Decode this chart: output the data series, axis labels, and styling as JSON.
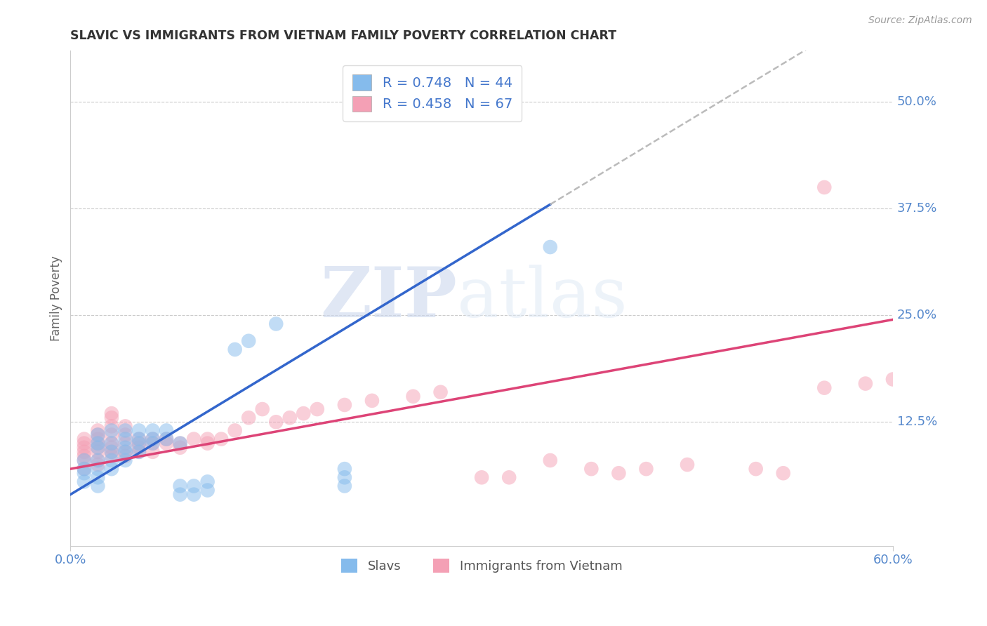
{
  "title": "SLAVIC VS IMMIGRANTS FROM VIETNAM FAMILY POVERTY CORRELATION CHART",
  "source_text": "Source: ZipAtlas.com",
  "xmin": 0.0,
  "xmax": 0.6,
  "ymin": -0.02,
  "ymax": 0.56,
  "slavs_R": 0.748,
  "slavs_N": 44,
  "vietnam_R": 0.458,
  "vietnam_N": 67,
  "slavs_color": "#85bbec",
  "vietnam_color": "#f4a0b5",
  "slavs_line_color": "#3366cc",
  "vietnam_line_color": "#dd4477",
  "dashed_line_color": "#bbbbbb",
  "legend_label_slavs": "Slavs",
  "legend_label_vietnam": "Immigrants from Vietnam",
  "ylabel": "Family Poverty",
  "watermark_zip": "ZIP",
  "watermark_atlas": "atlas",
  "background_color": "#ffffff",
  "grid_color": "#cccccc",
  "tick_label_color": "#5588cc",
  "title_color": "#333333",
  "slavs_line_x0": 0.0,
  "slavs_line_y0": 0.04,
  "slavs_line_x1": 0.35,
  "slavs_line_y1": 0.38,
  "slavs_line_solid_end": 0.35,
  "vietnam_line_x0": 0.0,
  "vietnam_line_y0": 0.07,
  "vietnam_line_x1": 0.6,
  "vietnam_line_y1": 0.245,
  "slavs_scatter": [
    [
      0.01,
      0.055
    ],
    [
      0.01,
      0.065
    ],
    [
      0.01,
      0.07
    ],
    [
      0.01,
      0.08
    ],
    [
      0.02,
      0.06
    ],
    [
      0.02,
      0.07
    ],
    [
      0.02,
      0.08
    ],
    [
      0.02,
      0.095
    ],
    [
      0.02,
      0.1
    ],
    [
      0.02,
      0.11
    ],
    [
      0.02,
      0.05
    ],
    [
      0.03,
      0.07
    ],
    [
      0.03,
      0.08
    ],
    [
      0.03,
      0.09
    ],
    [
      0.03,
      0.1
    ],
    [
      0.03,
      0.115
    ],
    [
      0.04,
      0.08
    ],
    [
      0.04,
      0.09
    ],
    [
      0.04,
      0.095
    ],
    [
      0.04,
      0.105
    ],
    [
      0.04,
      0.115
    ],
    [
      0.05,
      0.09
    ],
    [
      0.05,
      0.1
    ],
    [
      0.05,
      0.105
    ],
    [
      0.05,
      0.115
    ],
    [
      0.06,
      0.1
    ],
    [
      0.06,
      0.105
    ],
    [
      0.06,
      0.115
    ],
    [
      0.07,
      0.105
    ],
    [
      0.07,
      0.115
    ],
    [
      0.08,
      0.1
    ],
    [
      0.08,
      0.04
    ],
    [
      0.08,
      0.05
    ],
    [
      0.09,
      0.04
    ],
    [
      0.09,
      0.05
    ],
    [
      0.1,
      0.045
    ],
    [
      0.1,
      0.055
    ],
    [
      0.12,
      0.21
    ],
    [
      0.13,
      0.22
    ],
    [
      0.15,
      0.24
    ],
    [
      0.2,
      0.07
    ],
    [
      0.2,
      0.06
    ],
    [
      0.35,
      0.33
    ],
    [
      0.2,
      0.05
    ]
  ],
  "vietnam_scatter": [
    [
      0.01,
      0.07
    ],
    [
      0.01,
      0.08
    ],
    [
      0.01,
      0.085
    ],
    [
      0.01,
      0.09
    ],
    [
      0.01,
      0.095
    ],
    [
      0.01,
      0.1
    ],
    [
      0.01,
      0.105
    ],
    [
      0.02,
      0.075
    ],
    [
      0.02,
      0.08
    ],
    [
      0.02,
      0.09
    ],
    [
      0.02,
      0.095
    ],
    [
      0.02,
      0.1
    ],
    [
      0.02,
      0.105
    ],
    [
      0.02,
      0.11
    ],
    [
      0.02,
      0.115
    ],
    [
      0.03,
      0.085
    ],
    [
      0.03,
      0.09
    ],
    [
      0.03,
      0.095
    ],
    [
      0.03,
      0.1
    ],
    [
      0.03,
      0.11
    ],
    [
      0.03,
      0.12
    ],
    [
      0.03,
      0.13
    ],
    [
      0.03,
      0.135
    ],
    [
      0.04,
      0.085
    ],
    [
      0.04,
      0.09
    ],
    [
      0.04,
      0.1
    ],
    [
      0.04,
      0.11
    ],
    [
      0.04,
      0.12
    ],
    [
      0.05,
      0.09
    ],
    [
      0.05,
      0.095
    ],
    [
      0.05,
      0.1
    ],
    [
      0.05,
      0.105
    ],
    [
      0.06,
      0.09
    ],
    [
      0.06,
      0.1
    ],
    [
      0.06,
      0.105
    ],
    [
      0.07,
      0.1
    ],
    [
      0.07,
      0.105
    ],
    [
      0.08,
      0.095
    ],
    [
      0.08,
      0.1
    ],
    [
      0.09,
      0.105
    ],
    [
      0.1,
      0.1
    ],
    [
      0.1,
      0.105
    ],
    [
      0.11,
      0.105
    ],
    [
      0.12,
      0.115
    ],
    [
      0.13,
      0.13
    ],
    [
      0.14,
      0.14
    ],
    [
      0.15,
      0.125
    ],
    [
      0.16,
      0.13
    ],
    [
      0.17,
      0.135
    ],
    [
      0.18,
      0.14
    ],
    [
      0.2,
      0.145
    ],
    [
      0.22,
      0.15
    ],
    [
      0.25,
      0.155
    ],
    [
      0.27,
      0.16
    ],
    [
      0.3,
      0.06
    ],
    [
      0.32,
      0.06
    ],
    [
      0.35,
      0.08
    ],
    [
      0.38,
      0.07
    ],
    [
      0.4,
      0.065
    ],
    [
      0.42,
      0.07
    ],
    [
      0.45,
      0.075
    ],
    [
      0.5,
      0.07
    ],
    [
      0.52,
      0.065
    ],
    [
      0.55,
      0.4
    ],
    [
      0.55,
      0.165
    ],
    [
      0.58,
      0.17
    ],
    [
      0.6,
      0.175
    ]
  ]
}
